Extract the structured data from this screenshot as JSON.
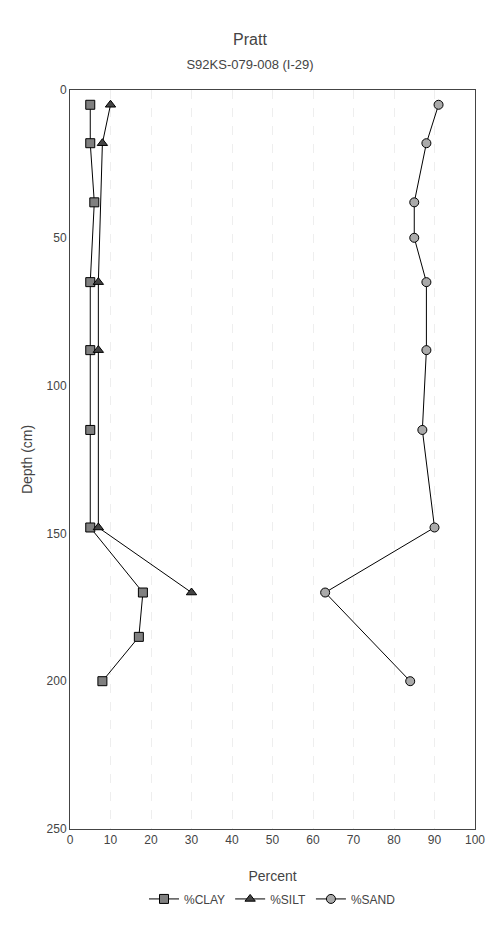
{
  "chart_data": {
    "type": "line",
    "title": "Pratt",
    "subtitle": "S92KS-079-008 (I-29)",
    "xlabel": "Percent",
    "ylabel": "Depth (cm)",
    "xlim": [
      0,
      100
    ],
    "ylim": [
      250,
      0
    ],
    "xticks": [
      0,
      10,
      20,
      30,
      40,
      50,
      60,
      70,
      80,
      90,
      100
    ],
    "yticks": [
      0,
      50,
      100,
      150,
      200,
      250
    ],
    "grid": "x",
    "legend": "bottom",
    "color": "#000000",
    "series": [
      {
        "name": "%CLAY",
        "color": "#808080",
        "marker": "square",
        "values": [
          5,
          5,
          6,
          5,
          5,
          5,
          5,
          18,
          17,
          8
        ],
        "depths": [
          5,
          18,
          38,
          65,
          88,
          115,
          148,
          170,
          185,
          200
        ]
      },
      {
        "name": "%SILT",
        "color": "#444444",
        "marker": "triangle",
        "values": [
          10,
          8,
          7,
          7,
          7,
          30
        ],
        "depths": [
          5,
          18,
          65,
          88,
          148,
          170
        ]
      },
      {
        "name": "%SAND",
        "color": "#aaaaaa",
        "marker": "circle",
        "values": [
          91,
          88,
          85,
          85,
          88,
          88,
          87,
          90,
          63,
          84
        ],
        "depths": [
          5,
          18,
          38,
          50,
          65,
          88,
          115,
          148,
          170,
          200
        ]
      }
    ]
  }
}
